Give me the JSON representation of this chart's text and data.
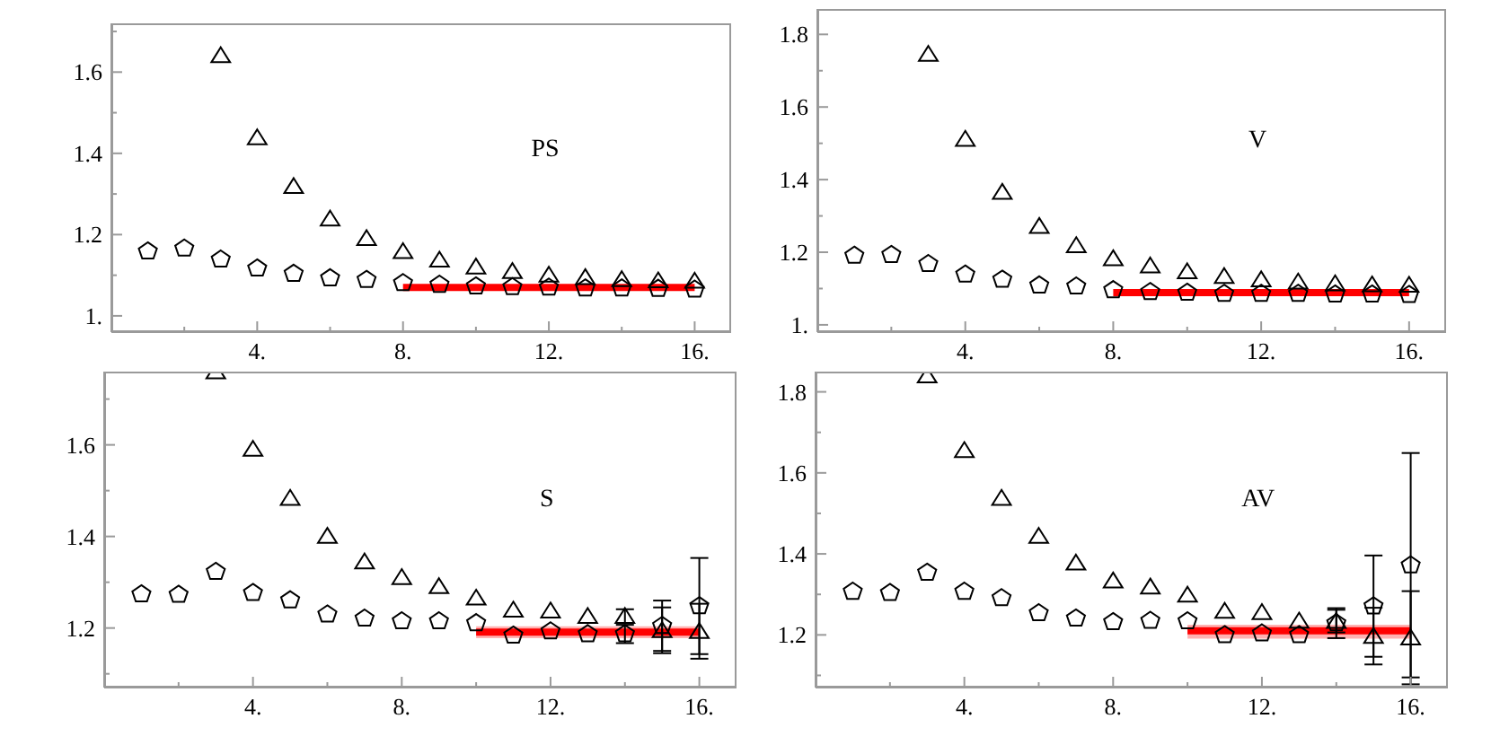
{
  "chart_data": [
    {
      "type": "scatter",
      "x": [
        1,
        2,
        3,
        4,
        5,
        6,
        7,
        8,
        9,
        10,
        11,
        12,
        13,
        14,
        15,
        16
      ],
      "xlim": [
        0,
        17
      ],
      "xticks": [
        {
          "value": 2,
          "label": null
        },
        {
          "value": 4,
          "label": "4."
        },
        {
          "value": 6,
          "label": null
        },
        {
          "value": 8,
          "label": "8."
        },
        {
          "value": 10,
          "label": null
        },
        {
          "value": 12,
          "label": "12."
        },
        {
          "value": 14,
          "label": null
        },
        {
          "value": 16,
          "label": "16."
        }
      ],
      "ylim": [
        0.96,
        1.72
      ],
      "yticks": [
        {
          "value": 1,
          "label": "1."
        },
        {
          "value": 1.1,
          "label": null
        },
        1.2,
        {
          "value": 1.3,
          "label": null
        },
        1.4,
        {
          "value": 1.5,
          "label": null
        },
        1.6,
        {
          "value": 1.7,
          "label": null
        }
      ],
      "annotations": [
        "PS"
      ],
      "series": [
        {
          "type": "line",
          "x": [
            8,
            16
          ],
          "values": [
            1.07,
            1.07
          ],
          "color": "#ff0000"
        },
        {
          "marker": "triangle",
          "color": "#000000",
          "values": [
            null,
            null,
            1.641,
            1.439,
            1.319,
            1.239,
            1.191,
            1.159,
            1.138,
            1.121,
            1.11,
            1.101,
            1.095,
            1.09,
            1.087,
            1.086
          ]
        },
        {
          "color": "#000000",
          "values": [
            1.159,
            1.166,
            1.139,
            1.117,
            1.104,
            1.093,
            1.089,
            1.081,
            1.077,
            1.073,
            1.071,
            1.07,
            1.068,
            1.068,
            1.067,
            1.065
          ]
        }
      ]
    },
    {
      "type": "scatter",
      "x": [
        1,
        2,
        3,
        4,
        5,
        6,
        7,
        8,
        9,
        10,
        11,
        12,
        13,
        14,
        15,
        16
      ],
      "xlim": [
        0,
        17
      ],
      "xticks": [
        {
          "value": 2,
          "label": null
        },
        {
          "value": 4,
          "label": "4."
        },
        {
          "value": 6,
          "label": null
        },
        {
          "value": 8,
          "label": "8."
        },
        {
          "value": 10,
          "label": null
        },
        {
          "value": 12,
          "label": "12."
        },
        {
          "value": 14,
          "label": null
        },
        {
          "value": 16,
          "label": "16."
        }
      ],
      "ylim": [
        0.98,
        1.87
      ],
      "yticks": [
        {
          "value": 1,
          "label": "1."
        },
        {
          "value": 1.1,
          "label": null
        },
        1.2,
        {
          "value": 1.3,
          "label": null
        },
        1.4,
        {
          "value": 1.5,
          "label": null
        },
        1.6,
        {
          "value": 1.7,
          "label": null
        },
        1.8
      ],
      "annotations": [
        "V"
      ],
      "series": [
        {
          "type": "line",
          "x": [
            8,
            16
          ],
          "values": [
            1.089,
            1.089
          ],
          "color": "#ff0000"
        },
        {
          "marker": "triangle",
          "color": "#000000",
          "values": [
            null,
            null,
            1.746,
            1.512,
            1.366,
            1.272,
            1.219,
            1.183,
            1.163,
            1.147,
            1.134,
            1.125,
            1.119,
            1.114,
            1.111,
            1.11
          ]
        },
        {
          "color": "#000000",
          "values": [
            1.191,
            1.193,
            1.168,
            1.139,
            1.125,
            1.109,
            1.106,
            1.096,
            1.091,
            1.089,
            1.086,
            1.086,
            1.086,
            1.084,
            1.084,
            1.083
          ]
        }
      ]
    },
    {
      "type": "scatter",
      "x": [
        1,
        2,
        3,
        4,
        5,
        6,
        7,
        8,
        9,
        10,
        11,
        12,
        13,
        14,
        15,
        16
      ],
      "xlim": [
        0,
        17
      ],
      "xticks": [
        {
          "value": 2,
          "label": null
        },
        {
          "value": 4,
          "label": "4."
        },
        {
          "value": 6,
          "label": null
        },
        {
          "value": 8,
          "label": "8."
        },
        {
          "value": 10,
          "label": null
        },
        {
          "value": 12,
          "label": "12."
        },
        {
          "value": 14,
          "label": null
        },
        {
          "value": 16,
          "label": "16."
        }
      ],
      "ylim": [
        1.07,
        1.76
      ],
      "yticks": [
        {
          "value": 1.1,
          "label": null
        },
        1.2,
        {
          "value": 1.3,
          "label": null
        },
        1.4,
        {
          "value": 1.5,
          "label": null
        },
        1.6,
        {
          "value": 1.7,
          "label": null
        }
      ],
      "annotations": [
        "S"
      ],
      "series": [
        {
          "type": "line",
          "x": [
            10,
            16
          ],
          "values": [
            1.191,
            1.191
          ],
          "lower": [
            1.178,
            1.178
          ],
          "upper": [
            1.204,
            1.204
          ],
          "color": "#ff0000"
        },
        {
          "marker": "triangle",
          "color": "#000000",
          "values": [
            null,
            null,
            1.76,
            1.591,
            1.484,
            1.401,
            1.345,
            1.311,
            1.291,
            1.266,
            1.24,
            1.238,
            1.226,
            1.226,
            1.195,
            1.193
          ],
          "errors": [
            null,
            null,
            null,
            null,
            null,
            null,
            null,
            null,
            null,
            null,
            null,
            null,
            null,
            0.015,
            0.05,
            0.06
          ]
        },
        {
          "color": "#000000",
          "values": [
            1.274,
            1.273,
            1.323,
            1.277,
            1.261,
            1.23,
            1.221,
            1.215,
            1.215,
            1.211,
            1.184,
            1.193,
            1.187,
            1.187,
            1.205,
            1.248
          ],
          "errors": [
            null,
            null,
            null,
            null,
            null,
            null,
            null,
            null,
            null,
            null,
            null,
            null,
            null,
            0.02,
            0.055,
            0.105
          ]
        }
      ]
    },
    {
      "type": "scatter",
      "x": [
        1,
        2,
        3,
        4,
        5,
        6,
        7,
        8,
        9,
        10,
        11,
        12,
        13,
        14,
        15,
        16
      ],
      "xlim": [
        0,
        17
      ],
      "xticks": [
        {
          "value": 2,
          "label": null
        },
        {
          "value": 4,
          "label": "4."
        },
        {
          "value": 6,
          "label": null
        },
        {
          "value": 8,
          "label": "8."
        },
        {
          "value": 10,
          "label": null
        },
        {
          "value": 12,
          "label": "12."
        },
        {
          "value": 14,
          "label": null
        },
        {
          "value": 16,
          "label": "16."
        }
      ],
      "ylim": [
        1.07,
        1.85
      ],
      "yticks": [
        {
          "value": 1.1,
          "label": null
        },
        1.2,
        {
          "value": 1.3,
          "label": null
        },
        1.4,
        {
          "value": 1.5,
          "label": null
        },
        1.6,
        {
          "value": 1.7,
          "label": null
        },
        1.8
      ],
      "annotations": [
        "AV"
      ],
      "series": [
        {
          "type": "line",
          "x": [
            10,
            16
          ],
          "values": [
            1.21,
            1.21
          ],
          "lower": [
            1.191,
            1.191
          ],
          "upper": [
            1.225,
            1.225
          ],
          "color": "#ff0000"
        },
        {
          "marker": "triangle",
          "color": "#000000",
          "values": [
            null,
            null,
            1.84,
            1.656,
            1.538,
            1.444,
            1.378,
            1.334,
            1.319,
            1.299,
            1.259,
            1.256,
            1.235,
            1.234,
            1.197,
            1.193
          ],
          "errors": [
            null,
            null,
            null,
            null,
            null,
            null,
            null,
            null,
            null,
            null,
            null,
            null,
            null,
            0.028,
            0.07,
            0.115
          ]
        },
        {
          "color": "#000000",
          "values": [
            1.307,
            1.304,
            1.354,
            1.307,
            1.291,
            1.254,
            1.241,
            1.232,
            1.235,
            1.234,
            1.2,
            1.204,
            1.2,
            1.229,
            1.271,
            1.372
          ],
          "errors": [
            null,
            null,
            null,
            null,
            null,
            null,
            null,
            null,
            null,
            null,
            null,
            null,
            null,
            0.037,
            0.125,
            0.277
          ]
        }
      ]
    }
  ]
}
